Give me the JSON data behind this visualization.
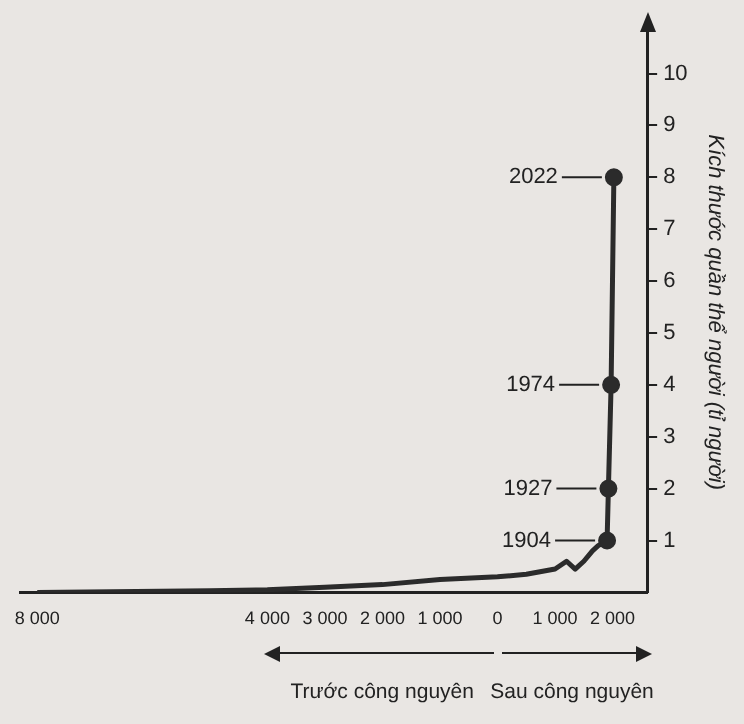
{
  "chart_data": {
    "type": "line",
    "ylabel": "Kích thước quần thể người (tỉ người)",
    "xlim": [
      -8300,
      2600
    ],
    "ylim": [
      0,
      10.8
    ],
    "xticks": [
      {
        "value": -8000,
        "label": "8 000"
      },
      {
        "value": -4000,
        "label": "4 000"
      },
      {
        "value": -3000,
        "label": "3 000"
      },
      {
        "value": -2000,
        "label": "2 000"
      },
      {
        "value": -1000,
        "label": "1 000"
      },
      0,
      {
        "value": 1000,
        "label": "1 000"
      },
      {
        "value": 2000,
        "label": "2 000"
      }
    ],
    "yticks": [
      1,
      2,
      3,
      4,
      5,
      6,
      7,
      8,
      9,
      10
    ],
    "grid": false,
    "legend": false,
    "series": [
      {
        "color": "#2b2b2b",
        "marker": "none",
        "x": [
          -8000,
          -5000,
          -4000,
          -3000,
          -2000,
          -1000,
          0,
          500,
          1000,
          1200,
          1350,
          1500,
          1650,
          1750,
          1904,
          1927,
          1974,
          2022
        ],
        "values": [
          0,
          0.03,
          0.05,
          0.1,
          0.15,
          0.25,
          0.3,
          0.35,
          0.45,
          0.6,
          0.45,
          0.6,
          0.8,
          0.9,
          1,
          2,
          4,
          8
        ]
      },
      {
        "type": "scatter",
        "color": "#2b2b2b",
        "marker": "circle",
        "x": [
          1904,
          1927,
          1974,
          2022
        ],
        "values": [
          1,
          2,
          4,
          8
        ]
      }
    ],
    "annotations": [
      {
        "text": "1904",
        "x": 1904,
        "y": 1
      },
      {
        "text": "1927",
        "x": 1927,
        "y": 2
      },
      {
        "text": "1974",
        "x": 1974,
        "y": 4
      },
      {
        "text": "2022",
        "x": 2022,
        "y": 8
      },
      "Trước công nguyên",
      "Sau công nguyên"
    ]
  }
}
